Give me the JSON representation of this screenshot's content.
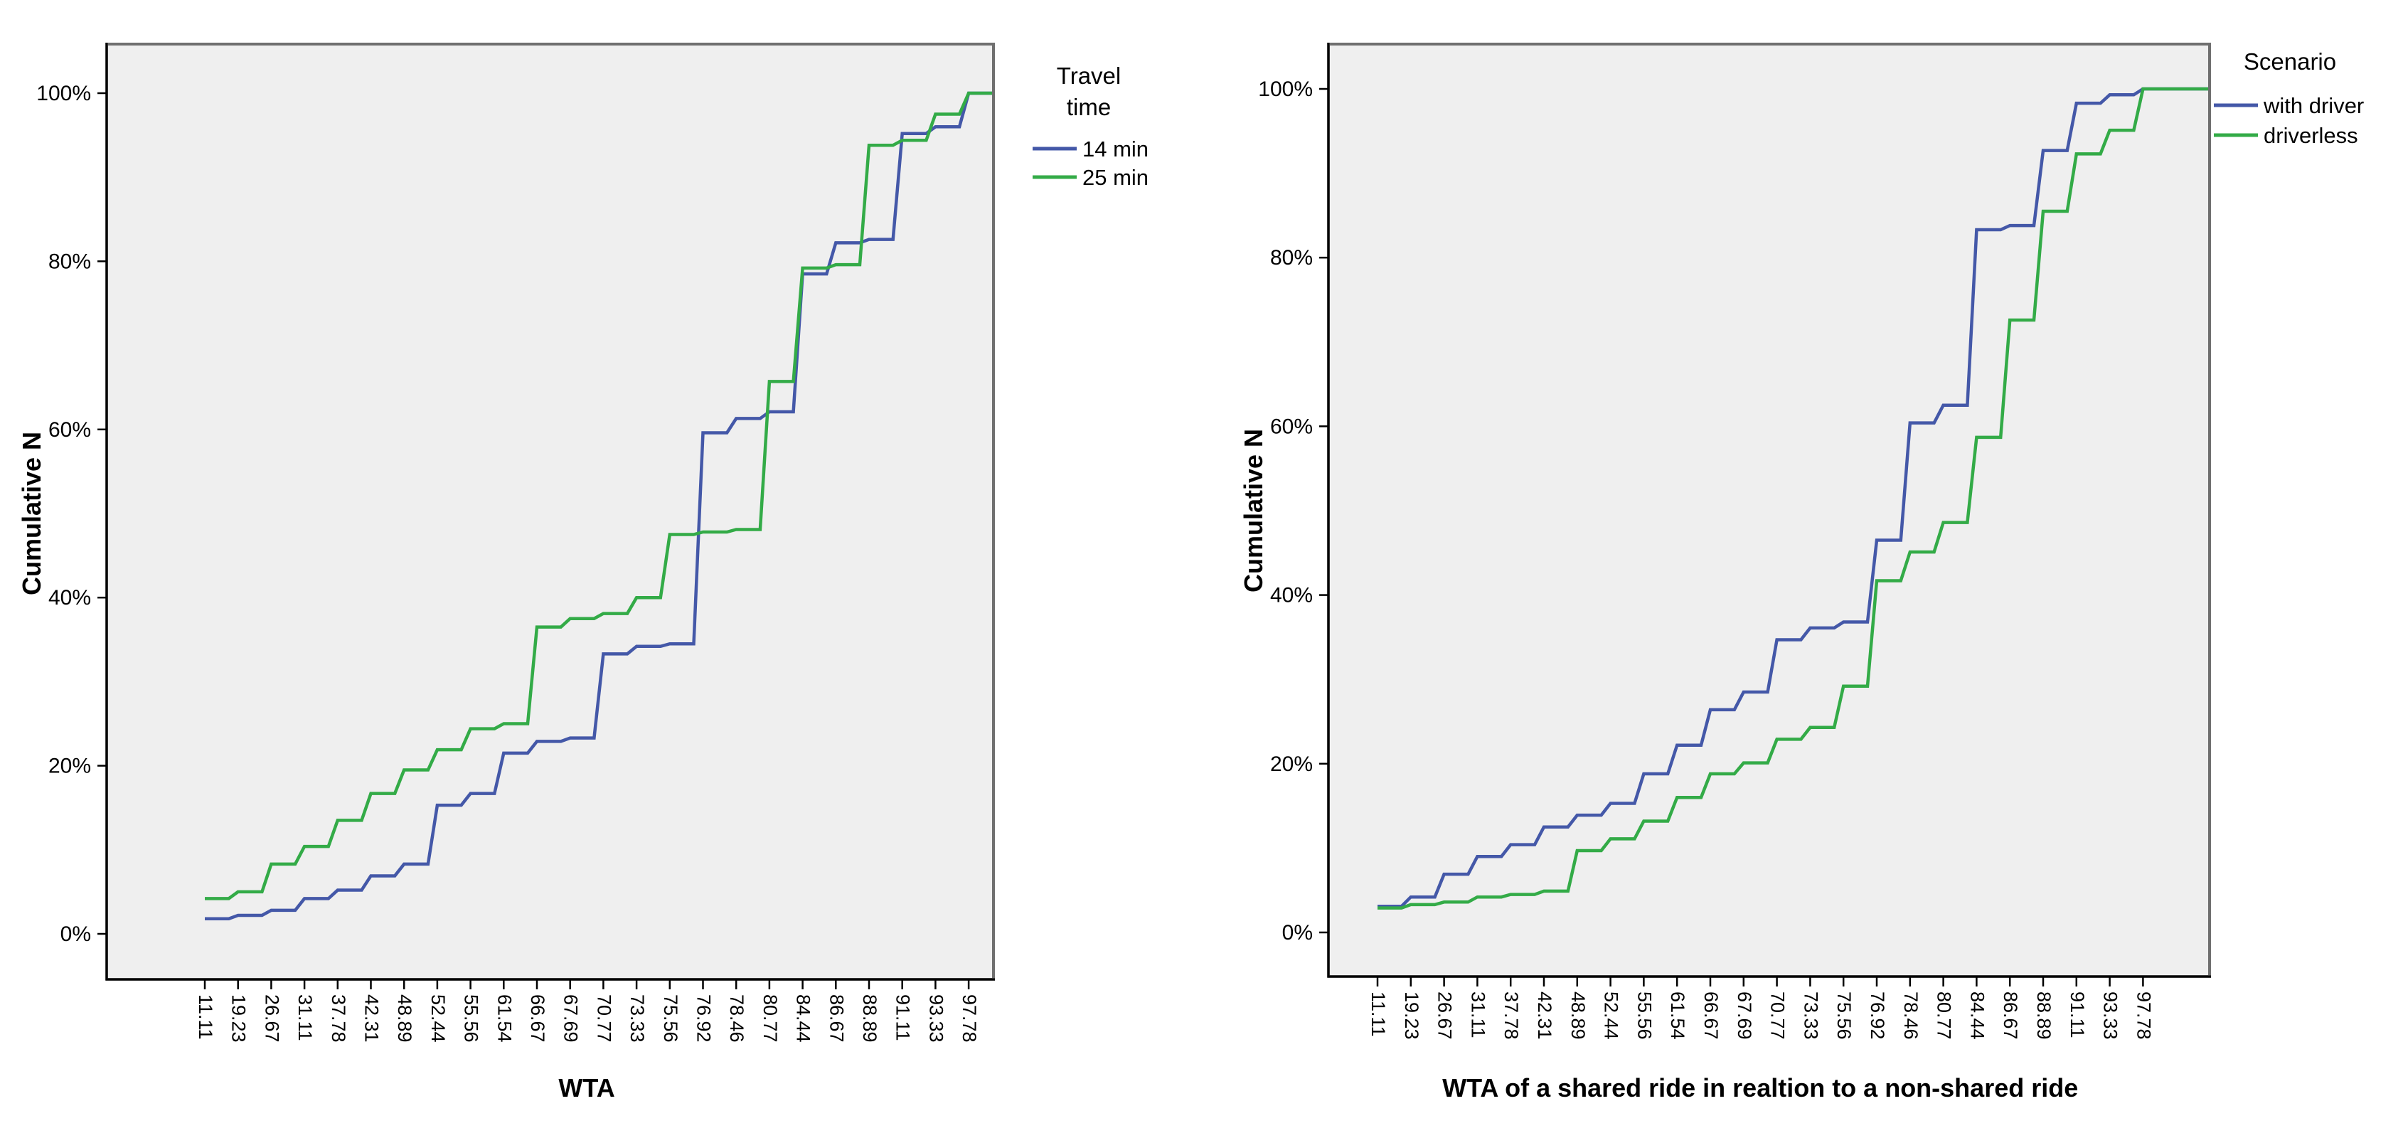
{
  "figure": {
    "description": "Two cumulative distribution step charts",
    "background": "#ffffff"
  },
  "chart_data": [
    {
      "type": "line",
      "subtype": "cumulative_step",
      "title": "",
      "xlabel": "WTA",
      "ylabel": "Cumulative N",
      "ylim": [
        0,
        100
      ],
      "ytick_labels": [
        "0%",
        "20%",
        "40%",
        "60%",
        "80%",
        "100%"
      ],
      "ytick_values": [
        0,
        20,
        40,
        60,
        80,
        100
      ],
      "grid": false,
      "plot_bg": "#efefef",
      "legend_position": "outside-top-right",
      "legend": {
        "title_lines": [
          "Travel",
          "time"
        ],
        "items": [
          {
            "label": "14 min",
            "color": "#4458a8"
          },
          {
            "label": "25 min",
            "color": "#33ab47"
          }
        ]
      },
      "categories": [
        "11.11",
        "19.23",
        "26.67",
        "31.11",
        "37.78",
        "42.31",
        "48.89",
        "52.44",
        "55.56",
        "61.54",
        "66.67",
        "67.69",
        "70.77",
        "73.33",
        "75.56",
        "76.92",
        "78.46",
        "80.77",
        "84.44",
        "86.67",
        "88.89",
        "91.11",
        "93.33",
        "97.78"
      ],
      "series": [
        {
          "name": "14 min",
          "color": "#4458a8",
          "values": [
            1.8,
            2.2,
            2.8,
            4.2,
            5.2,
            6.9,
            8.3,
            15.3,
            16.7,
            21.5,
            22.9,
            23.3,
            33.3,
            34.2,
            34.5,
            59.6,
            61.3,
            62.1,
            78.5,
            82.2,
            82.6,
            95.2,
            96.0,
            100
          ]
        },
        {
          "name": "25 min",
          "color": "#33ab47",
          "values": [
            4.2,
            5.0,
            8.3,
            10.4,
            13.5,
            16.7,
            19.5,
            21.9,
            24.4,
            25.0,
            36.5,
            37.5,
            38.1,
            40.0,
            47.5,
            47.8,
            48.1,
            65.7,
            79.2,
            79.6,
            93.8,
            94.4,
            97.5,
            100
          ]
        }
      ]
    },
    {
      "type": "line",
      "subtype": "cumulative_step",
      "title": "",
      "xlabel": "WTA of a shared ride in realtion to a non-shared ride",
      "ylabel": "Cumulative N",
      "ylim": [
        0,
        100
      ],
      "ytick_labels": [
        "0%",
        "20%",
        "40%",
        "60%",
        "80%",
        "100%"
      ],
      "ytick_values": [
        0,
        20,
        40,
        60,
        80,
        100
      ],
      "grid": false,
      "plot_bg": "#efefef",
      "legend_position": "outside-top-right",
      "legend": {
        "title_lines": [
          "Scenario"
        ],
        "items": [
          {
            "label": "with driver",
            "color": "#4458a8"
          },
          {
            "label": "driverless",
            "color": "#33ab47"
          }
        ]
      },
      "categories": [
        "11.11",
        "19.23",
        "26.67",
        "31.11",
        "37.78",
        "42.31",
        "48.89",
        "52.44",
        "55.56",
        "61.54",
        "66.67",
        "67.69",
        "70.77",
        "73.33",
        "75.56",
        "76.92",
        "78.46",
        "80.77",
        "84.44",
        "86.67",
        "88.89",
        "91.11",
        "93.33",
        "97.78"
      ],
      "series": [
        {
          "name": "with driver",
          "color": "#4458a8",
          "values": [
            3.1,
            4.2,
            6.9,
            9.0,
            10.4,
            12.5,
            13.9,
            15.3,
            18.8,
            22.2,
            26.4,
            28.5,
            34.7,
            36.1,
            36.8,
            46.5,
            60.4,
            62.5,
            83.3,
            83.8,
            92.7,
            98.3,
            99.3,
            100
          ]
        },
        {
          "name": "driverless",
          "color": "#33ab47",
          "values": [
            2.9,
            3.3,
            3.6,
            4.2,
            4.5,
            4.9,
            9.7,
            11.1,
            13.2,
            16.0,
            18.8,
            20.1,
            22.9,
            24.3,
            29.2,
            41.7,
            45.1,
            48.6,
            58.7,
            72.6,
            85.5,
            92.3,
            95.1,
            100
          ]
        }
      ]
    }
  ]
}
